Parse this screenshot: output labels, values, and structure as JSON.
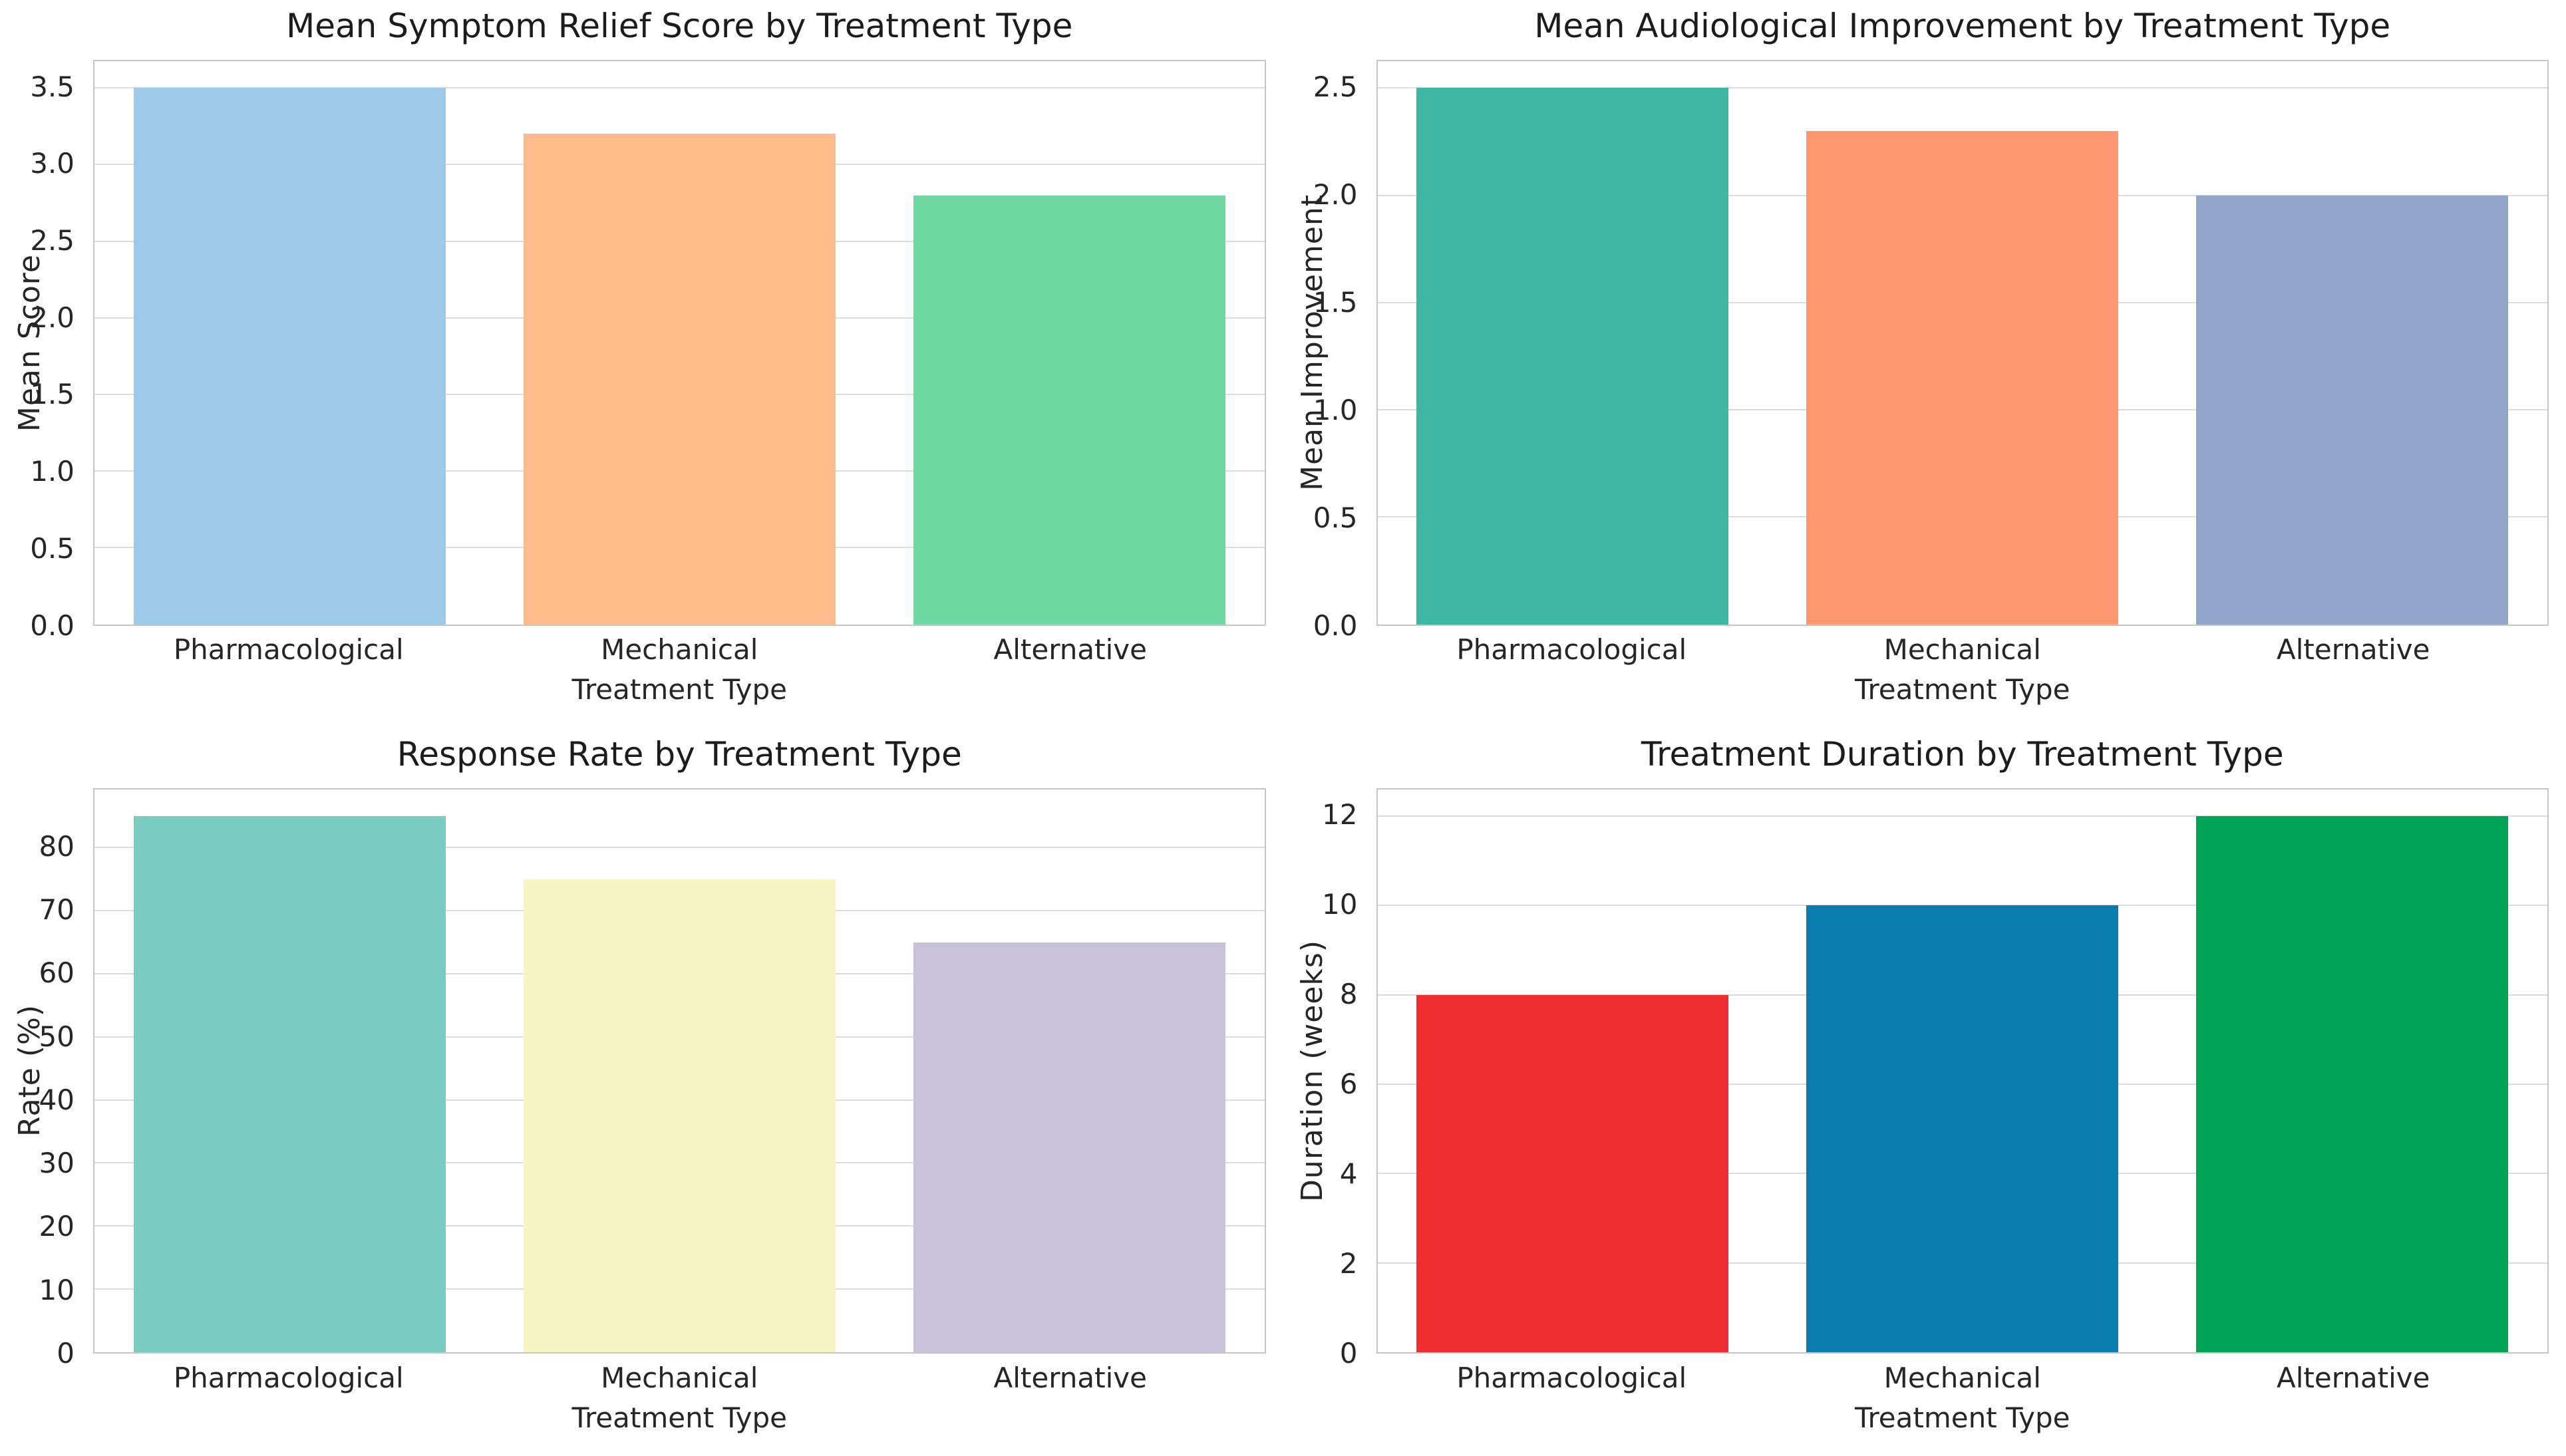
{
  "figure": {
    "background": "#ffffff",
    "grid_color": "#dcdcdc",
    "spine_color": "#c6c6c6",
    "text_color": "#262626"
  },
  "chart_data": [
    {
      "type": "bar",
      "id": "symptom-relief",
      "title": "Mean Symptom Relief Score by Treatment Type",
      "xlabel": "Treatment Type",
      "ylabel": "Mean Score",
      "categories": [
        "Pharmacological",
        "Mechanical",
        "Alternative"
      ],
      "values": [
        3.5,
        3.2,
        2.8
      ],
      "bar_colors": [
        "#9ecae9",
        "#fdbb8c",
        "#6fd8a3"
      ],
      "yticks": [
        0,
        0.5,
        1,
        1.5,
        2,
        2.5,
        3,
        3.5
      ],
      "ytick_labels": [
        "0.0",
        "0.5",
        "1.0",
        "1.5",
        "2.0",
        "2.5",
        "3.0",
        "3.5"
      ],
      "ylim": [
        0,
        3.675
      ],
      "grid": true,
      "legend": null
    },
    {
      "type": "bar",
      "id": "audiological-improvement",
      "title": "Mean Audiological Improvement by Treatment Type",
      "xlabel": "Treatment Type",
      "ylabel": "Mean Improvement",
      "categories": [
        "Pharmacological",
        "Mechanical",
        "Alternative"
      ],
      "values": [
        2.5,
        2.3,
        2.0
      ],
      "bar_colors": [
        "#40b7a3",
        "#fd9671",
        "#90a5c9"
      ],
      "yticks": [
        0,
        0.5,
        1,
        1.5,
        2,
        2.5
      ],
      "ytick_labels": [
        "0.0",
        "0.5",
        "1.0",
        "1.5",
        "2.0",
        "2.5"
      ],
      "ylim": [
        0,
        2.625
      ],
      "grid": true,
      "legend": null
    },
    {
      "type": "bar",
      "id": "response-rate",
      "title": "Response Rate by Treatment Type",
      "xlabel": "Treatment Type",
      "ylabel": "Rate (%)",
      "categories": [
        "Pharmacological",
        "Mechanical",
        "Alternative"
      ],
      "values": [
        85,
        75,
        65
      ],
      "bar_colors": [
        "#7accc1",
        "#f7f4c3",
        "#c7c2d9"
      ],
      "yticks": [
        0,
        10,
        20,
        30,
        40,
        50,
        60,
        70,
        80
      ],
      "ytick_labels": [
        "0",
        "10",
        "20",
        "30",
        "40",
        "50",
        "60",
        "70",
        "80"
      ],
      "ylim": [
        0,
        89.25
      ],
      "grid": true,
      "legend": null
    },
    {
      "type": "bar",
      "id": "treatment-duration",
      "title": "Treatment Duration by Treatment Type",
      "xlabel": "Treatment Type",
      "ylabel": "Duration (weeks)",
      "categories": [
        "Pharmacological",
        "Mechanical",
        "Alternative"
      ],
      "values": [
        8,
        10,
        12
      ],
      "bar_colors": [
        "#ee2e31",
        "#0a7dae",
        "#00a356"
      ],
      "yticks": [
        0,
        2,
        4,
        6,
        8,
        10,
        12
      ],
      "ytick_labels": [
        "0",
        "2",
        "4",
        "6",
        "8",
        "10",
        "12"
      ],
      "ylim": [
        0,
        12.6
      ],
      "grid": true,
      "legend": null
    }
  ]
}
